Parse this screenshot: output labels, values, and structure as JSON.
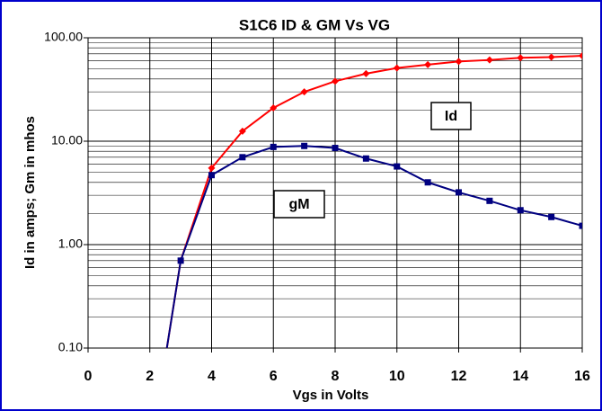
{
  "chart_data": {
    "type": "line",
    "title": "S1C6 ID & GM Vs VG",
    "xlabel": "Vgs  in Volts",
    "ylabel": "Id in amps;  Gm in mhos",
    "x": [
      2.5,
      3,
      4,
      5,
      6,
      7,
      8,
      9,
      10,
      11,
      12,
      13,
      14,
      15,
      16
    ],
    "series": [
      {
        "name": "Id",
        "color": "#ff0000",
        "marker": "diamond",
        "values": [
          0.08,
          0.7,
          5.5,
          12.5,
          21,
          30,
          38,
          45,
          51,
          55,
          59,
          61,
          64,
          65,
          67
        ]
      },
      {
        "name": "gM",
        "color": "#000080",
        "marker": "square",
        "values": [
          0.08,
          0.7,
          4.7,
          7,
          8.8,
          9,
          8.6,
          6.8,
          5.7,
          4.0,
          3.2,
          2.65,
          2.15,
          1.85,
          1.52
        ]
      }
    ],
    "xlim": [
      0,
      16
    ],
    "xticks": [
      0,
      2,
      4,
      6,
      8,
      10,
      12,
      14,
      16
    ],
    "ylim": [
      0.1,
      100
    ],
    "yticks": [
      {
        "value": 0.1,
        "label": "0.10"
      },
      {
        "value": 1,
        "label": "1.00"
      },
      {
        "value": 10,
        "label": "10.00"
      },
      {
        "value": 100,
        "label": "100.00"
      }
    ],
    "ylog": true,
    "grid": true
  }
}
